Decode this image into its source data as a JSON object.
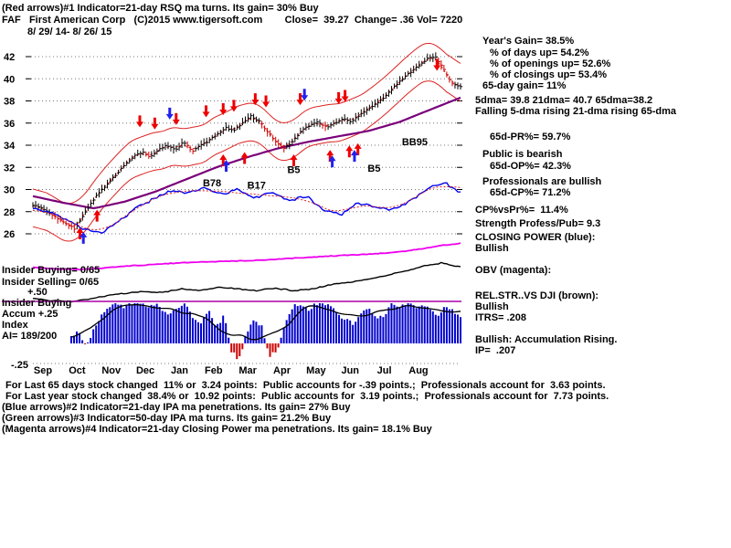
{
  "header": {
    "line1": "(Red arrows)#1 Indicator=21-day RSQ ma turns. Its gain= 30% Buy",
    "line2": "FAF   First American Corp   (C)2015 www.tigersoft.com        Close=  39.27  Change= .36 Vol= 7220",
    "line3": "8/ 29/ 14- 8/ 26/ 15"
  },
  "panel": {
    "years_gain": "Year's Gain= 38.5%",
    "days_up": "% of days up= 54.2%",
    "openings_up": "% of openings up= 52.6%",
    "closings_up": "% of closings up= 53.4%",
    "gain_65day": "65-day gain= 11%",
    "dmas": "5dma= 39.8 21dma= 40.7 65dma=38.2",
    "dma_trend": "Falling 5-dma rising 21-dma rising 65-dma",
    "pr65": "65d-PR%= 59.7%",
    "public_sent": "Public is bearish",
    "op65": "65d-OP%= 42.3%",
    "prof_sent": "Professionals are bullish",
    "cp65": "65d-CP%= 71.2%",
    "cp_vs_pr": "CP%vsPr%=  11.4%",
    "strength": "Strength Profess/Pub= 9.3",
    "cp_label": "CLOSING POWER (blue):",
    "cp_state": "Bullish",
    "obv_label": "OBV (magenta):",
    "relstr_label": "REL.STR..VS DJI (brown):",
    "relstr_state": "Bullish",
    "itrs": "ITRS= .208",
    "accum_state": "Bullish: Accumulation Rising.",
    "ip": "IP=  .207"
  },
  "left": {
    "ins_buy": "Insider Buying= 0/65",
    "ins_sell": "Insider Selling= 0/65",
    "plus50": "+.50",
    "ins_buy2": "Insider Buying",
    "accum": "Accum +.25",
    "index": "Index",
    "ai": "AI= 189/200",
    "minus25": "-.25"
  },
  "footer": {
    "l1": "For Last 65 days stock changed  11% or  3.24 points:  Public accounts for -.39 points.;  Professionals account for  3.63 points.",
    "l2": "For Last year stock changed  38.4% or  10.92 points:  Public accounts for  3.19 points.;  Professionals account for  7.73 points.",
    "l3": "(Blue arrows)#2 Indicator=21-day IPA ma penetrations. Its gain= 27% Buy",
    "l4": "(Green arrows)#3 Indicator=50-day IPA ma turns. Its gain= 21.2% Buy",
    "l5": "(Magenta arrows)#4 Indicator=21-day Closing Power ma penetrations. Its gain= 18.1% Buy"
  },
  "chart_data": {
    "type": "candlestick",
    "title": "FAF First American Corp 8/29/14 - 8/26/15",
    "last_close": 39.27,
    "ylim": [
      25.5,
      43
    ],
    "y_ticks": [
      42,
      40,
      38,
      36,
      34,
      32,
      30,
      28,
      26
    ],
    "months": [
      "Sep",
      "Oct",
      "Nov",
      "Dec",
      "Jan",
      "Feb",
      "Mar",
      "Apr",
      "May",
      "Jun",
      "Jul",
      "Aug"
    ],
    "price": {
      "weekly_close": [
        28.6,
        28.3,
        27.9,
        27.4,
        26.9,
        26.4,
        27.6,
        28.9,
        29.8,
        30.6,
        31.4,
        32.3,
        33.0,
        33.4,
        32.9,
        33.6,
        34.0,
        33.6,
        34.3,
        33.4,
        34.0,
        34.4,
        35.0,
        35.6,
        35.3,
        36.0,
        36.6,
        36.2,
        35.2,
        34.3,
        33.7,
        34.4,
        35.3,
        35.8,
        36.1,
        35.6,
        36.0,
        36.4,
        36.1,
        36.8,
        37.3,
        37.8,
        38.4,
        39.2,
        39.9,
        40.6,
        41.2,
        41.8,
        42.0,
        40.8,
        39.6,
        39.27
      ],
      "band_offset": 1.7
    },
    "ma65_anchors": [
      29.4,
      28.8,
      28.3,
      28.9,
      29.8,
      30.9,
      32.0,
      32.9,
      33.7,
      34.3,
      34.8,
      35.3,
      36.1,
      37.2,
      38.3
    ],
    "closing_power": [
      0.5,
      0.42,
      0.3,
      0.12,
      0.04,
      0.25,
      0.5,
      0.66,
      0.82,
      0.78,
      0.88,
      0.76,
      0.84,
      0.7,
      0.78,
      0.64,
      0.72,
      0.46,
      0.38,
      0.6,
      0.52,
      0.48,
      0.62,
      0.84,
      0.98,
      0.78
    ],
    "obv": [
      0.15,
      0.1,
      0.08,
      0.12,
      0.18,
      0.22,
      0.26,
      0.3,
      0.32,
      0.34,
      0.36,
      0.4,
      0.44,
      0.48,
      0.52,
      0.55,
      0.6,
      0.68,
      0.8,
      0.88
    ],
    "rel_strength": [
      0.12,
      0.06,
      0.04,
      0.1,
      0.18,
      0.24,
      0.28,
      0.26,
      0.34,
      0.3,
      0.38,
      0.34,
      0.3,
      0.36,
      0.3,
      0.34,
      0.44,
      0.5,
      0.58,
      0.66,
      0.76,
      0.88,
      0.96,
      0.86
    ],
    "accum_index": [
      0.1,
      0.15,
      -0.05,
      0.2,
      0.35,
      0.45,
      0.5,
      0.45,
      0.5,
      0.5,
      0.45,
      0.5,
      0.4,
      0.35,
      0.45,
      0.5,
      0.3,
      0.25,
      0.4,
      0.2,
      0.35,
      -0.1,
      -0.2,
      0.15,
      0.3,
      0.2,
      -0.15,
      -0.1,
      0.25,
      0.45,
      0.5,
      0.4,
      0.5,
      0.5,
      0.45,
      0.35,
      0.3,
      0.25,
      0.4,
      0.45,
      0.3,
      0.35,
      0.5,
      0.45,
      0.5,
      0.45,
      0.5,
      0.4,
      0.35,
      0.45,
      0.4,
      0.35
    ],
    "accum_scale": {
      "top": "+.50",
      "bottom": "-.25"
    },
    "arrows": [
      {
        "f": 0.25,
        "p": 36.2,
        "dir": "down",
        "c": "red"
      },
      {
        "f": 0.285,
        "p": 36.0,
        "dir": "down",
        "c": "red"
      },
      {
        "f": 0.335,
        "p": 36.4,
        "dir": "down",
        "c": "red"
      },
      {
        "f": 0.405,
        "p": 37.1,
        "dir": "down",
        "c": "red"
      },
      {
        "f": 0.445,
        "p": 37.3,
        "dir": "down",
        "c": "red"
      },
      {
        "f": 0.47,
        "p": 37.6,
        "dir": "down",
        "c": "red"
      },
      {
        "f": 0.52,
        "p": 38.2,
        "dir": "down",
        "c": "red"
      },
      {
        "f": 0.545,
        "p": 38.0,
        "dir": "down",
        "c": "red"
      },
      {
        "f": 0.625,
        "p": 38.2,
        "dir": "down",
        "c": "red"
      },
      {
        "f": 0.715,
        "p": 38.3,
        "dir": "down",
        "c": "red"
      },
      {
        "f": 0.73,
        "p": 38.5,
        "dir": "down",
        "c": "red"
      },
      {
        "f": 0.945,
        "p": 41.3,
        "dir": "down",
        "c": "red"
      },
      {
        "f": 0.11,
        "p": 26.0,
        "dir": "up",
        "c": "red"
      },
      {
        "f": 0.15,
        "p": 27.6,
        "dir": "up",
        "c": "red"
      },
      {
        "f": 0.445,
        "p": 32.6,
        "dir": "up",
        "c": "red"
      },
      {
        "f": 0.495,
        "p": 32.8,
        "dir": "up",
        "c": "red"
      },
      {
        "f": 0.61,
        "p": 32.6,
        "dir": "up",
        "c": "red"
      },
      {
        "f": 0.695,
        "p": 33.0,
        "dir": "up",
        "c": "red"
      },
      {
        "f": 0.74,
        "p": 33.4,
        "dir": "up",
        "c": "red"
      },
      {
        "f": 0.76,
        "p": 33.6,
        "dir": "up",
        "c": "red"
      },
      {
        "f": 0.118,
        "p": 25.6,
        "dir": "up",
        "c": "blue"
      },
      {
        "f": 0.452,
        "p": 32.1,
        "dir": "up",
        "c": "blue"
      },
      {
        "f": 0.7,
        "p": 32.5,
        "dir": "up",
        "c": "blue"
      },
      {
        "f": 0.752,
        "p": 33.0,
        "dir": "up",
        "c": "blue"
      },
      {
        "f": 0.32,
        "p": 36.9,
        "dir": "down",
        "c": "blue"
      },
      {
        "f": 0.635,
        "p": 38.6,
        "dir": "down",
        "c": "blue"
      }
    ],
    "signal_labels": [
      {
        "f": 0.419,
        "p": 30.3,
        "t": "B78"
      },
      {
        "f": 0.523,
        "p": 30.1,
        "t": "B17"
      },
      {
        "f": 0.61,
        "p": 31.5,
        "t": "B5"
      },
      {
        "f": 0.798,
        "p": 31.6,
        "t": "B5"
      },
      {
        "f": 0.893,
        "p": 34.0,
        "t": "BB95"
      }
    ],
    "colors": {
      "price": "#000000",
      "down_bar": "#cc0000",
      "band": "#dd2222",
      "ma65": "#7a007a",
      "closing_power": "#0000ee",
      "obv": "#ee00ee",
      "rel_strength": "#000000",
      "hist_pos": "#0000cc",
      "hist_neg": "#cc0000",
      "arrow_red": "#ee0000",
      "arrow_blue": "#2222ee",
      "ref_line": "#aa00aa"
    }
  }
}
